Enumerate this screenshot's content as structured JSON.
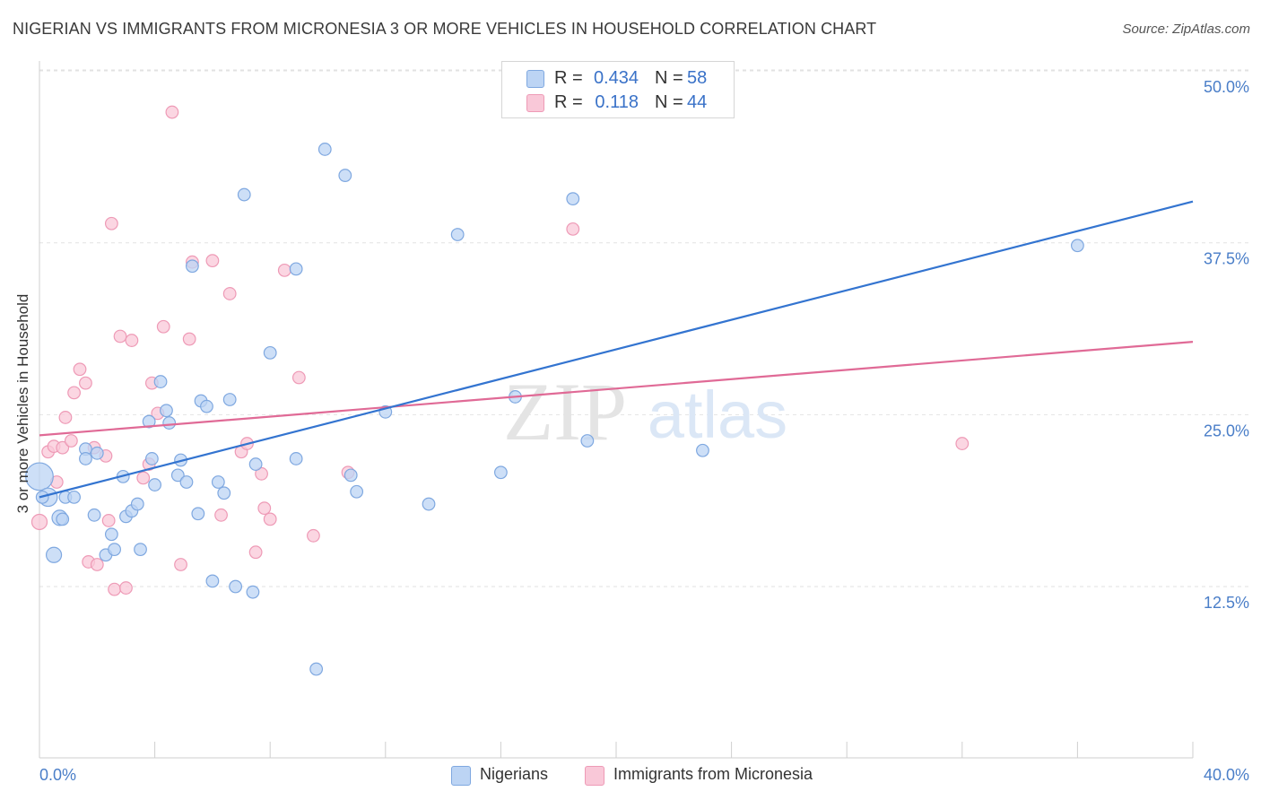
{
  "title": "NIGERIAN VS IMMIGRANTS FROM MICRONESIA 3 OR MORE VEHICLES IN HOUSEHOLD CORRELATION CHART",
  "source": "Source: ZipAtlas.com",
  "watermark": {
    "zip": "ZIP",
    "atlas": "atlas"
  },
  "stats": [
    {
      "r_label": "R =",
      "r_value": "0.434",
      "n_label": "N =",
      "n_value": "58"
    },
    {
      "r_label": "R =",
      "r_value": "0.118",
      "n_label": "N =",
      "n_value": "44"
    }
  ],
  "legend": [
    {
      "label": "Nigerians"
    },
    {
      "label": "Immigrants from Micronesia"
    }
  ],
  "colors": {
    "blue_fill": "#bcd4f4",
    "blue_stroke": "#7fa8e0",
    "blue_line": "#3374d0",
    "pink_fill": "#f9c8d8",
    "pink_stroke": "#ee9ab6",
    "pink_line": "#e06a96",
    "tick_text": "#4a7ec8",
    "grid": "#e2e2e2"
  },
  "chart_data": {
    "type": "scatter",
    "title": "NIGERIAN VS IMMIGRANTS FROM MICRONESIA 3 OR MORE VEHICLES IN HOUSEHOLD CORRELATION CHART",
    "xlabel": "",
    "ylabel": "3 or more Vehicles in Household",
    "xlim": [
      0,
      40
    ],
    "ylim": [
      0,
      52
    ],
    "x_tick_labels": [
      {
        "value": 0,
        "label": "0.0%"
      },
      {
        "value": 40,
        "label": "40.0%"
      }
    ],
    "y_tick_labels": [
      {
        "value": 12.5,
        "label": "12.5%"
      },
      {
        "value": 25,
        "label": "25.0%"
      },
      {
        "value": 37.5,
        "label": "37.5%"
      },
      {
        "value": 50,
        "label": "50.0%"
      }
    ],
    "x_minor_ticks": [
      4,
      8,
      12,
      16,
      20,
      24,
      28,
      32,
      36,
      40
    ],
    "series": [
      {
        "name": "Nigerians",
        "color": "blue",
        "trend": {
          "x": [
            0,
            40
          ],
          "y": [
            19.0,
            40.5
          ]
        },
        "points": [
          [
            0.0,
            20.5,
            1.8
          ],
          [
            0.3,
            19.0,
            1.2
          ],
          [
            0.5,
            14.8,
            1.0
          ],
          [
            0.7,
            17.5,
            1.0
          ],
          [
            0.8,
            17.4,
            0.8
          ],
          [
            0.9,
            19.0,
            0.8
          ],
          [
            1.2,
            19.0,
            0.8
          ],
          [
            1.6,
            22.5,
            0.8
          ],
          [
            1.6,
            21.8,
            0.8
          ],
          [
            1.9,
            17.7,
            0.8
          ],
          [
            2.0,
            22.2,
            0.8
          ],
          [
            2.3,
            14.8,
            0.8
          ],
          [
            2.5,
            16.3,
            0.8
          ],
          [
            2.6,
            15.2,
            0.8
          ],
          [
            2.9,
            20.5,
            0.8
          ],
          [
            3.0,
            17.6,
            0.8
          ],
          [
            3.2,
            18.0,
            0.8
          ],
          [
            3.4,
            18.5,
            0.8
          ],
          [
            3.5,
            15.2,
            0.8
          ],
          [
            3.8,
            24.5,
            0.8
          ],
          [
            3.9,
            21.8,
            0.8
          ],
          [
            4.0,
            19.9,
            0.8
          ],
          [
            4.2,
            27.4,
            0.8
          ],
          [
            4.4,
            25.3,
            0.8
          ],
          [
            4.5,
            24.4,
            0.8
          ],
          [
            4.8,
            20.6,
            0.8
          ],
          [
            4.9,
            21.7,
            0.8
          ],
          [
            5.1,
            20.1,
            0.8
          ],
          [
            5.3,
            35.8,
            0.8
          ],
          [
            5.5,
            17.8,
            0.8
          ],
          [
            5.6,
            26.0,
            0.8
          ],
          [
            5.8,
            25.6,
            0.8
          ],
          [
            6.0,
            12.9,
            0.8
          ],
          [
            6.2,
            20.1,
            0.8
          ],
          [
            6.4,
            19.3,
            0.8
          ],
          [
            6.6,
            26.1,
            0.8
          ],
          [
            6.8,
            12.5,
            0.8
          ],
          [
            7.1,
            41.0,
            0.8
          ],
          [
            7.4,
            12.1,
            0.8
          ],
          [
            7.5,
            21.4,
            0.8
          ],
          [
            8.0,
            29.5,
            0.8
          ],
          [
            8.9,
            35.6,
            0.8
          ],
          [
            8.9,
            21.8,
            0.8
          ],
          [
            9.6,
            6.5,
            0.8
          ],
          [
            9.9,
            44.3,
            0.8
          ],
          [
            10.6,
            42.4,
            0.8
          ],
          [
            10.8,
            20.6,
            0.8
          ],
          [
            11.0,
            19.4,
            0.8
          ],
          [
            12.0,
            25.2,
            0.8
          ],
          [
            13.5,
            18.5,
            0.8
          ],
          [
            14.5,
            38.1,
            0.8
          ],
          [
            16.0,
            20.8,
            0.8
          ],
          [
            16.5,
            26.3,
            0.8
          ],
          [
            18.5,
            40.7,
            0.8
          ],
          [
            19.0,
            23.1,
            0.8
          ],
          [
            23.0,
            22.4,
            0.8
          ],
          [
            36.0,
            37.3,
            0.8
          ],
          [
            0.1,
            19.0,
            0.8
          ]
        ]
      },
      {
        "name": "Immigrants from Micronesia",
        "color": "pink",
        "trend": {
          "x": [
            0,
            40
          ],
          "y": [
            23.5,
            30.3
          ]
        },
        "points": [
          [
            0.0,
            17.2,
            1.0
          ],
          [
            0.3,
            22.3,
            0.8
          ],
          [
            0.5,
            22.7,
            0.8
          ],
          [
            0.6,
            20.1,
            0.8
          ],
          [
            0.8,
            22.6,
            0.8
          ],
          [
            0.9,
            24.8,
            0.8
          ],
          [
            1.1,
            23.1,
            0.8
          ],
          [
            1.2,
            26.6,
            0.8
          ],
          [
            1.4,
            28.3,
            0.8
          ],
          [
            1.6,
            27.3,
            0.8
          ],
          [
            1.7,
            14.3,
            0.8
          ],
          [
            1.9,
            22.6,
            0.8
          ],
          [
            2.0,
            14.1,
            0.8
          ],
          [
            2.3,
            22.0,
            0.8
          ],
          [
            2.4,
            17.3,
            0.8
          ],
          [
            2.5,
            38.9,
            0.8
          ],
          [
            2.6,
            12.3,
            0.8
          ],
          [
            2.8,
            30.7,
            0.8
          ],
          [
            3.0,
            12.4,
            0.8
          ],
          [
            3.2,
            30.4,
            0.8
          ],
          [
            3.6,
            20.4,
            0.8
          ],
          [
            3.8,
            21.4,
            0.8
          ],
          [
            3.9,
            27.3,
            0.8
          ],
          [
            4.1,
            25.1,
            0.8
          ],
          [
            4.3,
            31.4,
            0.8
          ],
          [
            4.6,
            47.0,
            0.8
          ],
          [
            4.9,
            14.1,
            0.8
          ],
          [
            5.2,
            30.5,
            0.8
          ],
          [
            5.3,
            36.1,
            0.8
          ],
          [
            6.0,
            36.2,
            0.8
          ],
          [
            6.3,
            17.7,
            0.8
          ],
          [
            6.6,
            33.8,
            0.8
          ],
          [
            7.0,
            22.3,
            0.8
          ],
          [
            7.2,
            22.9,
            0.8
          ],
          [
            7.5,
            15.0,
            0.8
          ],
          [
            7.7,
            20.7,
            0.8
          ],
          [
            7.8,
            18.2,
            0.8
          ],
          [
            8.0,
            17.4,
            0.8
          ],
          [
            8.5,
            35.5,
            0.8
          ],
          [
            9.0,
            27.7,
            0.8
          ],
          [
            9.5,
            16.2,
            0.8
          ],
          [
            10.7,
            20.8,
            0.8
          ],
          [
            18.5,
            38.5,
            0.8
          ],
          [
            32.0,
            22.9,
            0.8
          ]
        ]
      }
    ]
  }
}
